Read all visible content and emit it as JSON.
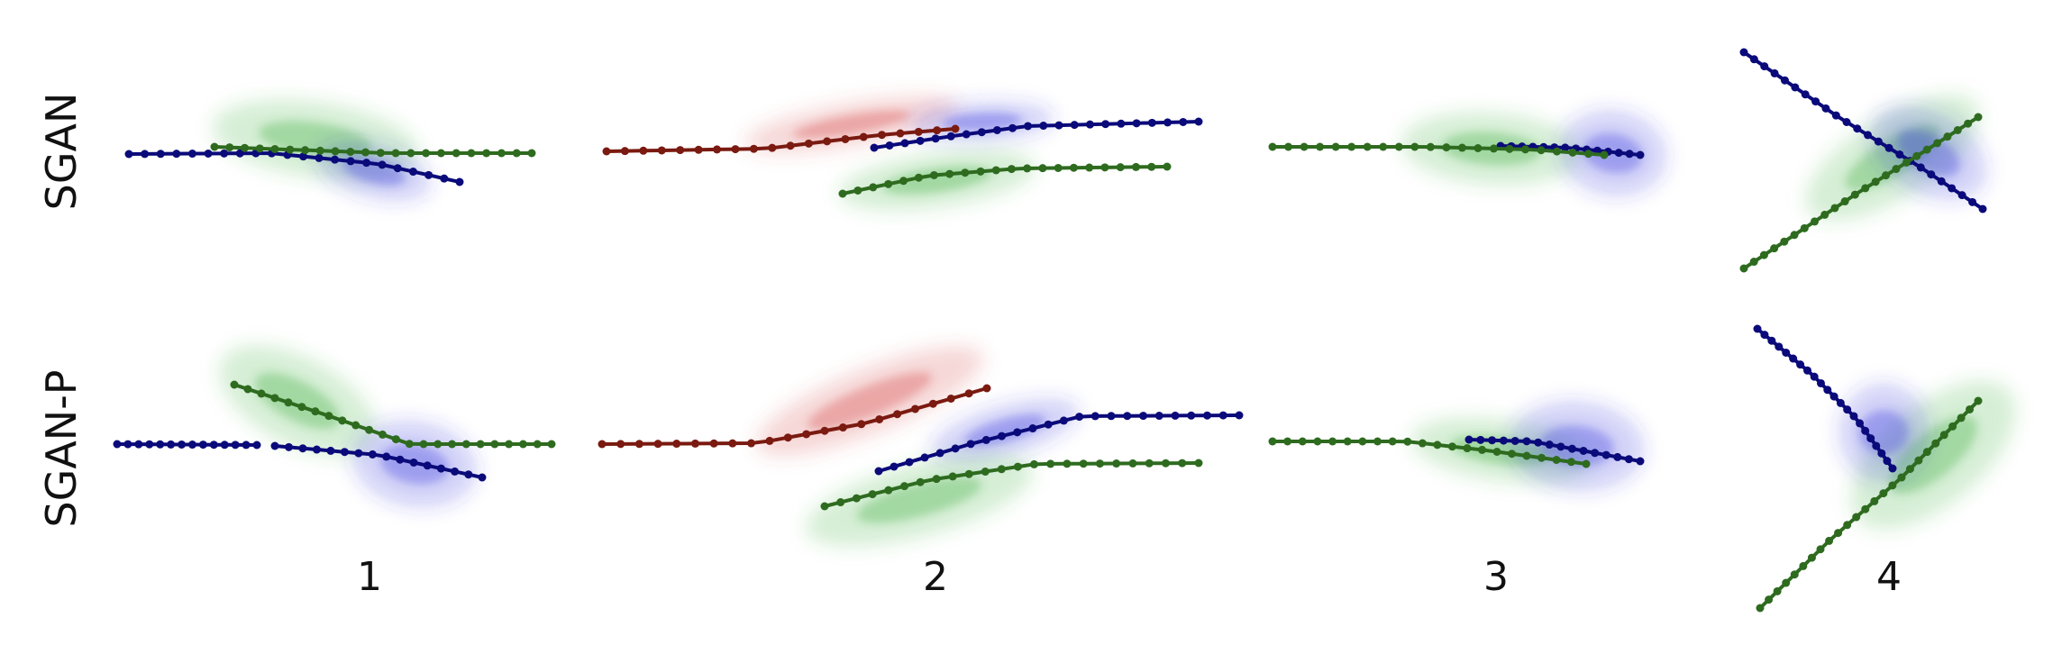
{
  "row_labels": [
    "SGAN",
    "SGAN-P"
  ],
  "column_labels": [
    "1",
    "2",
    "3",
    "4"
  ],
  "colors": {
    "blue": "#0a0a7a",
    "green": "#2e6b1f",
    "red": "#7a1a10",
    "blue_fill": "#3a3adf",
    "green_fill": "#44b044",
    "red_fill": "#d84a4a"
  }
}
